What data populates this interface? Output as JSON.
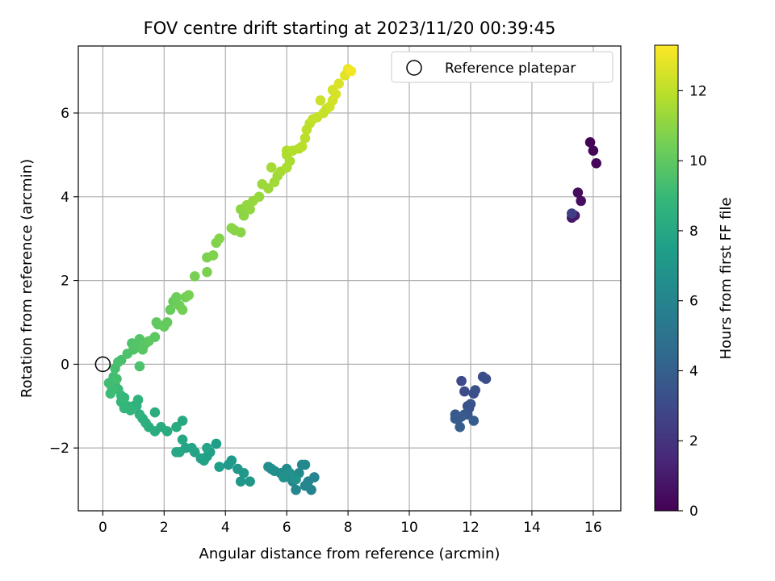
{
  "chart_data": {
    "type": "scatter",
    "title": "FOV centre drift starting at 2023/11/20 00:39:45",
    "xlabel": "Angular distance from reference (arcmin)",
    "ylabel": "Rotation from reference (arcmin)",
    "xlim": [
      -0.8,
      16.9
    ],
    "ylim": [
      -3.5,
      7.6
    ],
    "xticks": [
      0,
      2,
      4,
      6,
      8,
      10,
      12,
      14,
      16
    ],
    "yticks": [
      -2,
      0,
      2,
      4,
      6
    ],
    "grid": true,
    "legend": {
      "placement": "top-right",
      "entries": [
        {
          "label": "Reference platepar",
          "marker": "open-circle"
        }
      ]
    },
    "reference_point": {
      "x": 0,
      "y": 0
    },
    "colorbar": {
      "label": "Hours from first FF file",
      "colormap": "viridis",
      "range": [
        0,
        13.3
      ],
      "ticks": [
        0,
        2,
        4,
        6,
        8,
        10,
        12
      ]
    },
    "colors": {
      "viridis": [
        "#440154",
        "#482878",
        "#3e4989",
        "#31688e",
        "#26828e",
        "#1f9e89",
        "#35b779",
        "#6ece58",
        "#b5de2b",
        "#fde725"
      ]
    },
    "points": [
      {
        "x": 15.9,
        "y": 5.3,
        "h": 0.1
      },
      {
        "x": 16.0,
        "y": 5.1,
        "h": 0.15
      },
      {
        "x": 16.1,
        "y": 4.8,
        "h": 0.2
      },
      {
        "x": 15.5,
        "y": 4.1,
        "h": 0.4
      },
      {
        "x": 15.6,
        "y": 3.9,
        "h": 0.5
      },
      {
        "x": 15.3,
        "y": 3.5,
        "h": 0.8
      },
      {
        "x": 15.4,
        "y": 3.55,
        "h": 0.9
      },
      {
        "x": 15.3,
        "y": 3.6,
        "h": 2.5
      },
      {
        "x": 11.7,
        "y": -0.4,
        "h": 3.0
      },
      {
        "x": 11.8,
        "y": -0.65,
        "h": 3.1
      },
      {
        "x": 12.4,
        "y": -0.3,
        "h": 3.2
      },
      {
        "x": 12.5,
        "y": -0.35,
        "h": 3.2
      },
      {
        "x": 12.1,
        "y": -0.7,
        "h": 3.3
      },
      {
        "x": 12.15,
        "y": -0.62,
        "h": 3.3
      },
      {
        "x": 11.9,
        "y": -1.0,
        "h": 3.4
      },
      {
        "x": 12.0,
        "y": -0.95,
        "h": 3.5
      },
      {
        "x": 11.95,
        "y": -1.05,
        "h": 3.5
      },
      {
        "x": 11.8,
        "y": -1.2,
        "h": 3.6
      },
      {
        "x": 11.9,
        "y": -1.2,
        "h": 3.6
      },
      {
        "x": 11.5,
        "y": -1.2,
        "h": 3.7
      },
      {
        "x": 11.6,
        "y": -1.3,
        "h": 3.7
      },
      {
        "x": 11.5,
        "y": -1.3,
        "h": 3.8
      },
      {
        "x": 11.7,
        "y": -1.25,
        "h": 3.8
      },
      {
        "x": 12.1,
        "y": -1.35,
        "h": 3.9
      },
      {
        "x": 11.65,
        "y": -1.5,
        "h": 3.9
      },
      {
        "x": 6.8,
        "y": -3.0,
        "h": 5.9
      },
      {
        "x": 6.9,
        "y": -2.7,
        "h": 6.0
      },
      {
        "x": 6.7,
        "y": -2.8,
        "h": 6.0
      },
      {
        "x": 6.6,
        "y": -2.9,
        "h": 6.1
      },
      {
        "x": 6.3,
        "y": -3.0,
        "h": 6.1
      },
      {
        "x": 6.2,
        "y": -2.8,
        "h": 6.2
      },
      {
        "x": 6.5,
        "y": -2.4,
        "h": 6.2
      },
      {
        "x": 6.6,
        "y": -2.4,
        "h": 6.3
      },
      {
        "x": 6.4,
        "y": -2.6,
        "h": 6.3
      },
      {
        "x": 6.1,
        "y": -2.7,
        "h": 6.4
      },
      {
        "x": 6.0,
        "y": -2.5,
        "h": 6.4
      },
      {
        "x": 5.8,
        "y": -2.6,
        "h": 6.5
      },
      {
        "x": 5.6,
        "y": -2.55,
        "h": 6.5
      },
      {
        "x": 5.5,
        "y": -2.5,
        "h": 6.6
      },
      {
        "x": 5.4,
        "y": -2.45,
        "h": 6.6
      },
      {
        "x": 5.9,
        "y": -2.7,
        "h": 6.7
      },
      {
        "x": 6.1,
        "y": -2.6,
        "h": 6.7
      },
      {
        "x": 6.3,
        "y": -2.75,
        "h": 6.8
      },
      {
        "x": 4.8,
        "y": -2.8,
        "h": 7.0
      },
      {
        "x": 4.5,
        "y": -2.8,
        "h": 7.0
      },
      {
        "x": 4.6,
        "y": -2.6,
        "h": 7.1
      },
      {
        "x": 4.4,
        "y": -2.5,
        "h": 7.1
      },
      {
        "x": 4.2,
        "y": -2.3,
        "h": 7.2
      },
      {
        "x": 4.1,
        "y": -2.4,
        "h": 7.2
      },
      {
        "x": 3.7,
        "y": -1.9,
        "h": 7.4
      },
      {
        "x": 3.8,
        "y": -2.45,
        "h": 7.4
      },
      {
        "x": 3.5,
        "y": -2.1,
        "h": 7.5
      },
      {
        "x": 3.4,
        "y": -2.2,
        "h": 7.5
      },
      {
        "x": 3.3,
        "y": -2.3,
        "h": 7.6
      },
      {
        "x": 3.2,
        "y": -2.25,
        "h": 7.6
      },
      {
        "x": 3.4,
        "y": -2.0,
        "h": 7.7
      },
      {
        "x": 3.0,
        "y": -2.1,
        "h": 7.7
      },
      {
        "x": 2.9,
        "y": -2.0,
        "h": 7.8
      },
      {
        "x": 2.7,
        "y": -2.0,
        "h": 7.8
      },
      {
        "x": 2.5,
        "y": -2.1,
        "h": 7.9
      },
      {
        "x": 2.4,
        "y": -2.1,
        "h": 7.9
      },
      {
        "x": 2.6,
        "y": -1.8,
        "h": 8.0
      },
      {
        "x": 2.6,
        "y": -1.35,
        "h": 8.0
      },
      {
        "x": 2.4,
        "y": -1.5,
        "h": 8.1
      },
      {
        "x": 2.1,
        "y": -1.6,
        "h": 8.1
      },
      {
        "x": 1.9,
        "y": -1.5,
        "h": 8.2
      },
      {
        "x": 1.7,
        "y": -1.6,
        "h": 8.2
      },
      {
        "x": 1.7,
        "y": -1.15,
        "h": 8.3
      },
      {
        "x": 1.5,
        "y": -1.5,
        "h": 8.3
      },
      {
        "x": 1.4,
        "y": -1.4,
        "h": 8.4
      },
      {
        "x": 1.3,
        "y": -1.3,
        "h": 8.4
      },
      {
        "x": 1.2,
        "y": -1.2,
        "h": 8.5
      },
      {
        "x": 1.1,
        "y": -1.0,
        "h": 8.5
      },
      {
        "x": 1.15,
        "y": -0.85,
        "h": 8.6
      },
      {
        "x": 1.0,
        "y": -1.0,
        "h": 8.6
      },
      {
        "x": 0.9,
        "y": -1.1,
        "h": 8.7
      },
      {
        "x": 0.8,
        "y": -1.0,
        "h": 8.7
      },
      {
        "x": 0.7,
        "y": -1.05,
        "h": 8.8
      },
      {
        "x": 0.6,
        "y": -0.9,
        "h": 8.8
      },
      {
        "x": 0.6,
        "y": -0.75,
        "h": 8.9
      },
      {
        "x": 0.7,
        "y": -0.8,
        "h": 8.9
      },
      {
        "x": 0.5,
        "y": -0.6,
        "h": 9.0
      },
      {
        "x": 0.4,
        "y": -0.5,
        "h": 9.0
      },
      {
        "x": 0.3,
        "y": -0.6,
        "h": 9.1
      },
      {
        "x": 0.25,
        "y": -0.7,
        "h": 9.1
      },
      {
        "x": 0.2,
        "y": -0.45,
        "h": 9.2
      },
      {
        "x": 0.35,
        "y": -0.3,
        "h": 9.2
      },
      {
        "x": 0.45,
        "y": -0.35,
        "h": 9.3
      },
      {
        "x": 0.4,
        "y": -0.1,
        "h": 9.3
      },
      {
        "x": 0.5,
        "y": 0.05,
        "h": 9.4
      },
      {
        "x": 0.6,
        "y": 0.1,
        "h": 9.4
      },
      {
        "x": 1.2,
        "y": -0.05,
        "h": 9.5
      },
      {
        "x": 0.8,
        "y": 0.25,
        "h": 9.5
      },
      {
        "x": 1.0,
        "y": 0.35,
        "h": 9.6
      },
      {
        "x": 0.95,
        "y": 0.5,
        "h": 9.6
      },
      {
        "x": 1.1,
        "y": 0.45,
        "h": 9.7
      },
      {
        "x": 1.2,
        "y": 0.6,
        "h": 9.7
      },
      {
        "x": 1.3,
        "y": 0.35,
        "h": 9.8
      },
      {
        "x": 1.4,
        "y": 0.5,
        "h": 9.8
      },
      {
        "x": 1.5,
        "y": 0.55,
        "h": 9.9
      },
      {
        "x": 1.7,
        "y": 0.65,
        "h": 9.9
      },
      {
        "x": 1.8,
        "y": 0.95,
        "h": 10.0
      },
      {
        "x": 1.75,
        "y": 1.0,
        "h": 10.0
      },
      {
        "x": 2.0,
        "y": 0.9,
        "h": 10.1
      },
      {
        "x": 2.1,
        "y": 1.0,
        "h": 10.1
      },
      {
        "x": 2.2,
        "y": 1.3,
        "h": 10.2
      },
      {
        "x": 2.3,
        "y": 1.5,
        "h": 10.2
      },
      {
        "x": 2.5,
        "y": 1.4,
        "h": 10.3
      },
      {
        "x": 2.4,
        "y": 1.6,
        "h": 10.3
      },
      {
        "x": 2.6,
        "y": 1.3,
        "h": 10.4
      },
      {
        "x": 2.7,
        "y": 1.6,
        "h": 10.4
      },
      {
        "x": 2.8,
        "y": 1.65,
        "h": 10.5
      },
      {
        "x": 3.0,
        "y": 2.1,
        "h": 10.5
      },
      {
        "x": 3.4,
        "y": 2.2,
        "h": 10.6
      },
      {
        "x": 3.4,
        "y": 2.55,
        "h": 10.6
      },
      {
        "x": 3.6,
        "y": 2.6,
        "h": 10.7
      },
      {
        "x": 3.7,
        "y": 2.9,
        "h": 10.7
      },
      {
        "x": 3.8,
        "y": 3.0,
        "h": 10.8
      },
      {
        "x": 4.3,
        "y": 3.2,
        "h": 10.8
      },
      {
        "x": 4.2,
        "y": 3.25,
        "h": 10.9
      },
      {
        "x": 4.5,
        "y": 3.15,
        "h": 10.9
      },
      {
        "x": 4.5,
        "y": 3.7,
        "h": 11.0
      },
      {
        "x": 4.6,
        "y": 3.55,
        "h": 11.0
      },
      {
        "x": 4.8,
        "y": 3.7,
        "h": 11.1
      },
      {
        "x": 4.7,
        "y": 3.8,
        "h": 11.1
      },
      {
        "x": 4.9,
        "y": 3.9,
        "h": 11.2
      },
      {
        "x": 5.1,
        "y": 4.0,
        "h": 11.2
      },
      {
        "x": 5.2,
        "y": 4.3,
        "h": 11.3
      },
      {
        "x": 5.4,
        "y": 4.2,
        "h": 11.3
      },
      {
        "x": 5.6,
        "y": 4.35,
        "h": 11.4
      },
      {
        "x": 5.7,
        "y": 4.5,
        "h": 11.4
      },
      {
        "x": 5.5,
        "y": 4.7,
        "h": 11.5
      },
      {
        "x": 5.8,
        "y": 4.6,
        "h": 11.5
      },
      {
        "x": 6.0,
        "y": 4.7,
        "h": 11.6
      },
      {
        "x": 6.1,
        "y": 4.85,
        "h": 11.6
      },
      {
        "x": 6.0,
        "y": 5.0,
        "h": 11.7
      },
      {
        "x": 6.0,
        "y": 5.1,
        "h": 11.7
      },
      {
        "x": 6.2,
        "y": 5.1,
        "h": 11.8
      },
      {
        "x": 6.4,
        "y": 5.15,
        "h": 11.8
      },
      {
        "x": 6.5,
        "y": 5.2,
        "h": 11.9
      },
      {
        "x": 6.6,
        "y": 5.4,
        "h": 11.9
      },
      {
        "x": 6.65,
        "y": 5.6,
        "h": 12.0
      },
      {
        "x": 6.75,
        "y": 5.75,
        "h": 12.0
      },
      {
        "x": 6.85,
        "y": 5.85,
        "h": 12.1
      },
      {
        "x": 7.0,
        "y": 5.9,
        "h": 12.1
      },
      {
        "x": 7.2,
        "y": 6.0,
        "h": 12.2
      },
      {
        "x": 7.3,
        "y": 6.1,
        "h": 12.2
      },
      {
        "x": 7.4,
        "y": 6.15,
        "h": 12.3
      },
      {
        "x": 7.1,
        "y": 6.3,
        "h": 12.3
      },
      {
        "x": 7.5,
        "y": 6.3,
        "h": 12.4
      },
      {
        "x": 7.5,
        "y": 6.55,
        "h": 12.4
      },
      {
        "x": 7.6,
        "y": 6.45,
        "h": 12.5
      },
      {
        "x": 7.7,
        "y": 6.7,
        "h": 12.6
      },
      {
        "x": 7.9,
        "y": 6.9,
        "h": 12.7
      },
      {
        "x": 8.0,
        "y": 7.05,
        "h": 12.9
      },
      {
        "x": 8.1,
        "y": 7.0,
        "h": 13.1
      }
    ]
  }
}
